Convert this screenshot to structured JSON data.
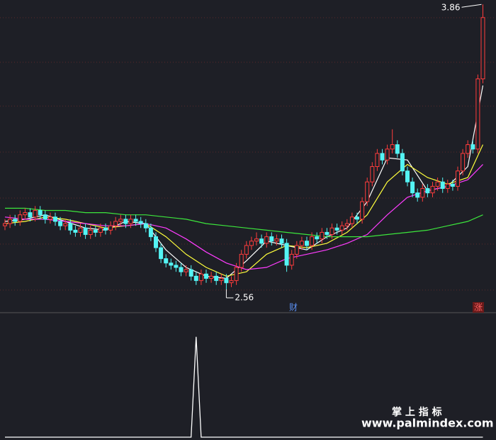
{
  "chart_data": {
    "type": "candlestick",
    "ylim": [
      2.46,
      3.88
    ],
    "up_color": "#ff3c3c",
    "down_color": "#54f4f4",
    "high_label": 3.86,
    "low_label": 2.56,
    "marker_left": "财",
    "marker_right": "涨",
    "candles": [
      [
        2.85,
        2.88,
        2.83,
        2.86
      ],
      [
        2.86,
        2.9,
        2.84,
        2.88
      ],
      [
        2.88,
        2.9,
        2.85,
        2.87
      ],
      [
        2.87,
        2.92,
        2.85,
        2.9
      ],
      [
        2.9,
        2.93,
        2.88,
        2.91
      ],
      [
        2.91,
        2.93,
        2.87,
        2.89
      ],
      [
        2.89,
        2.94,
        2.87,
        2.92
      ],
      [
        2.92,
        2.94,
        2.88,
        2.9
      ],
      [
        2.9,
        2.92,
        2.86,
        2.88
      ],
      [
        2.88,
        2.91,
        2.86,
        2.89
      ],
      [
        2.89,
        2.91,
        2.85,
        2.87
      ],
      [
        2.87,
        2.89,
        2.83,
        2.85
      ],
      [
        2.85,
        2.88,
        2.83,
        2.86
      ],
      [
        2.86,
        2.88,
        2.81,
        2.83
      ],
      [
        2.83,
        2.85,
        2.8,
        2.82
      ],
      [
        2.82,
        2.86,
        2.8,
        2.84
      ],
      [
        2.84,
        2.86,
        2.79,
        2.81
      ],
      [
        2.81,
        2.85,
        2.79,
        2.83
      ],
      [
        2.83,
        2.85,
        2.8,
        2.82
      ],
      [
        2.82,
        2.86,
        2.8,
        2.84
      ],
      [
        2.84,
        2.86,
        2.81,
        2.83
      ],
      [
        2.83,
        2.87,
        2.81,
        2.85
      ],
      [
        2.85,
        2.89,
        2.83,
        2.87
      ],
      [
        2.87,
        2.9,
        2.85,
        2.88
      ],
      [
        2.88,
        2.9,
        2.84,
        2.86
      ],
      [
        2.86,
        2.9,
        2.84,
        2.88
      ],
      [
        2.88,
        2.9,
        2.85,
        2.87
      ],
      [
        2.87,
        2.89,
        2.84,
        2.86
      ],
      [
        2.86,
        2.88,
        2.82,
        2.84
      ],
      [
        2.84,
        2.86,
        2.78,
        2.8
      ],
      [
        2.8,
        2.82,
        2.73,
        2.75
      ],
      [
        2.75,
        2.77,
        2.68,
        2.7
      ],
      [
        2.7,
        2.72,
        2.66,
        2.68
      ],
      [
        2.68,
        2.7,
        2.65,
        2.67
      ],
      [
        2.67,
        2.69,
        2.64,
        2.66
      ],
      [
        2.66,
        2.68,
        2.62,
        2.64
      ],
      [
        2.64,
        2.67,
        2.62,
        2.65
      ],
      [
        2.65,
        2.67,
        2.6,
        2.62
      ],
      [
        2.62,
        2.64,
        2.58,
        2.6
      ],
      [
        2.6,
        2.65,
        2.58,
        2.63
      ],
      [
        2.63,
        2.65,
        2.59,
        2.61
      ],
      [
        2.61,
        2.64,
        2.59,
        2.62
      ],
      [
        2.62,
        2.64,
        2.58,
        2.6
      ],
      [
        2.6,
        2.63,
        2.58,
        2.61
      ],
      [
        2.61,
        2.63,
        2.56,
        2.59
      ],
      [
        2.59,
        2.62,
        2.57,
        2.6
      ],
      [
        2.6,
        2.68,
        2.58,
        2.66
      ],
      [
        2.66,
        2.74,
        2.64,
        2.72
      ],
      [
        2.72,
        2.78,
        2.7,
        2.76
      ],
      [
        2.76,
        2.8,
        2.74,
        2.78
      ],
      [
        2.78,
        2.82,
        2.76,
        2.79
      ],
      [
        2.79,
        2.81,
        2.75,
        2.77
      ],
      [
        2.77,
        2.82,
        2.75,
        2.8
      ],
      [
        2.8,
        2.82,
        2.76,
        2.78
      ],
      [
        2.78,
        2.81,
        2.76,
        2.79
      ],
      [
        2.79,
        2.81,
        2.75,
        2.77
      ],
      [
        2.77,
        2.79,
        2.64,
        2.67
      ],
      [
        2.67,
        2.74,
        2.65,
        2.72
      ],
      [
        2.72,
        2.78,
        2.7,
        2.76
      ],
      [
        2.76,
        2.8,
        2.74,
        2.78
      ],
      [
        2.78,
        2.8,
        2.74,
        2.76
      ],
      [
        2.76,
        2.82,
        2.74,
        2.8
      ],
      [
        2.8,
        2.82,
        2.77,
        2.79
      ],
      [
        2.79,
        2.84,
        2.77,
        2.82
      ],
      [
        2.82,
        2.84,
        2.79,
        2.81
      ],
      [
        2.81,
        2.86,
        2.79,
        2.84
      ],
      [
        2.84,
        2.86,
        2.81,
        2.83
      ],
      [
        2.83,
        2.87,
        2.81,
        2.85
      ],
      [
        2.85,
        2.88,
        2.83,
        2.86
      ],
      [
        2.86,
        2.91,
        2.84,
        2.89
      ],
      [
        2.89,
        2.91,
        2.86,
        2.88
      ],
      [
        2.88,
        2.98,
        2.86,
        2.96
      ],
      [
        2.96,
        3.07,
        2.94,
        3.05
      ],
      [
        3.05,
        3.14,
        3.03,
        3.12
      ],
      [
        3.12,
        3.2,
        3.1,
        3.18
      ],
      [
        3.18,
        3.2,
        3.13,
        3.15
      ],
      [
        3.15,
        3.22,
        3.13,
        3.2
      ],
      [
        3.2,
        3.29,
        3.18,
        3.22
      ],
      [
        3.22,
        3.24,
        3.16,
        3.18
      ],
      [
        3.18,
        3.2,
        3.08,
        3.1
      ],
      [
        3.1,
        3.12,
        3.03,
        3.05
      ],
      [
        3.05,
        3.07,
        2.98,
        3.0
      ],
      [
        3.0,
        3.02,
        2.96,
        2.98
      ],
      [
        2.98,
        3.04,
        2.96,
        3.02
      ],
      [
        3.02,
        3.04,
        2.98,
        3.0
      ],
      [
        3.0,
        3.05,
        2.98,
        3.03
      ],
      [
        3.03,
        3.07,
        3.01,
        3.05
      ],
      [
        3.05,
        3.07,
        3.0,
        3.02
      ],
      [
        3.02,
        3.06,
        3.0,
        3.04
      ],
      [
        3.04,
        3.06,
        3.01,
        3.03
      ],
      [
        3.03,
        3.12,
        3.01,
        3.1
      ],
      [
        3.1,
        3.2,
        3.08,
        3.18
      ],
      [
        3.18,
        3.24,
        3.16,
        3.22
      ],
      [
        3.22,
        3.24,
        3.18,
        3.2
      ],
      [
        3.2,
        3.54,
        3.18,
        3.52
      ],
      [
        3.52,
        3.86,
        3.5,
        3.8
      ]
    ],
    "x": [
      0,
      4,
      8,
      12,
      16,
      20,
      24,
      28,
      32,
      36,
      40,
      44,
      48,
      52,
      56,
      60,
      64,
      68,
      72,
      76,
      80,
      84,
      88,
      92,
      95
    ],
    "series": [
      {
        "color": "#ffffff",
        "values": [
          2.87,
          2.88,
          2.9,
          2.87,
          2.84,
          2.83,
          2.87,
          2.86,
          2.74,
          2.66,
          2.62,
          2.61,
          2.69,
          2.78,
          2.76,
          2.74,
          2.8,
          2.84,
          2.96,
          3.16,
          3.15,
          3.01,
          3.03,
          3.12,
          3.49
        ]
      },
      {
        "color": "#ffff3c",
        "values": [
          2.86,
          2.87,
          2.89,
          2.88,
          2.86,
          2.84,
          2.85,
          2.86,
          2.8,
          2.72,
          2.66,
          2.62,
          2.64,
          2.72,
          2.76,
          2.75,
          2.77,
          2.82,
          2.9,
          3.05,
          3.13,
          3.07,
          3.04,
          3.07,
          3.22
        ]
      },
      {
        "color": "#ff3cff",
        "values": [
          2.89,
          2.88,
          2.88,
          2.87,
          2.86,
          2.85,
          2.85,
          2.86,
          2.84,
          2.79,
          2.73,
          2.68,
          2.65,
          2.66,
          2.7,
          2.72,
          2.74,
          2.77,
          2.81,
          2.9,
          2.98,
          3.01,
          3.03,
          3.06,
          3.13
        ]
      },
      {
        "color": "#3ce63c",
        "values": [
          2.93,
          2.93,
          2.92,
          2.92,
          2.91,
          2.91,
          2.9,
          2.9,
          2.89,
          2.88,
          2.86,
          2.85,
          2.84,
          2.83,
          2.82,
          2.81,
          2.8,
          2.8,
          2.8,
          2.81,
          2.82,
          2.83,
          2.85,
          2.87,
          2.9
        ]
      }
    ],
    "indicator": {
      "color": "#ffffff",
      "ylim": [
        0,
        1.1
      ],
      "values": [
        0,
        0,
        0,
        0,
        0,
        0,
        0,
        0,
        0,
        0,
        0,
        0,
        0,
        0,
        0,
        0,
        0,
        0,
        0,
        0,
        0,
        0,
        0,
        0,
        0,
        0,
        0,
        0,
        0,
        0,
        0,
        0,
        0,
        0,
        0,
        0,
        0,
        0,
        1,
        0,
        0,
        0,
        0,
        0,
        0,
        0,
        0,
        0,
        0,
        0,
        0,
        0,
        0,
        0,
        0,
        0,
        0,
        0,
        0,
        0,
        0,
        0,
        0,
        0,
        0,
        0,
        0,
        0,
        0,
        0,
        0,
        0,
        0,
        0,
        0,
        0,
        0,
        0,
        0,
        0,
        0,
        0,
        0,
        0,
        0,
        0,
        0,
        0,
        0,
        0,
        0,
        0,
        0,
        0,
        0,
        0
      ]
    }
  },
  "watermark": {
    "title": "掌 上 指 标",
    "url": "www.palmindex.com"
  }
}
